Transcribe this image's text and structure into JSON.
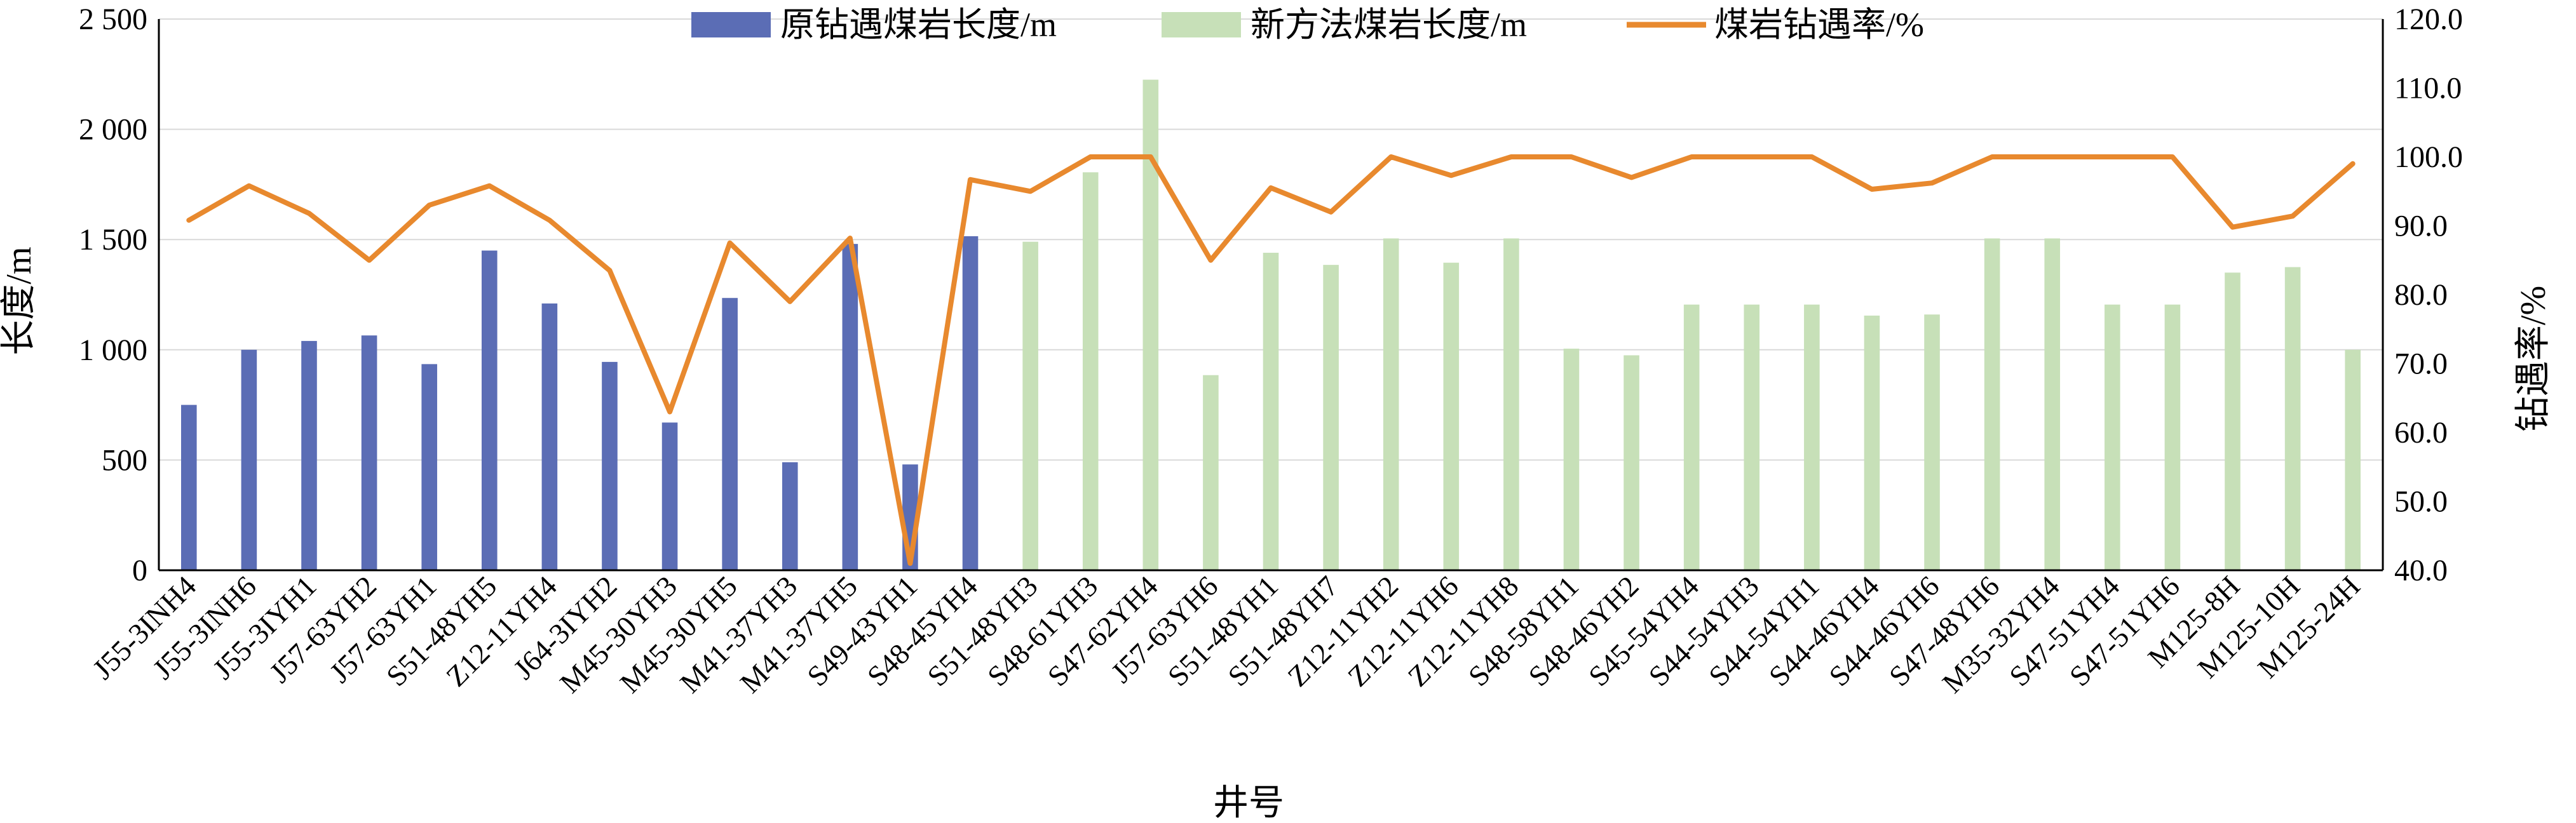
{
  "chart_data": {
    "type": "bar",
    "categories": [
      "J55-3INH4",
      "J55-3INH6",
      "J55-3IYH1",
      "J57-63YH2",
      "J57-63YH1",
      "S51-48YH5",
      "Z12-11YH4",
      "J64-3IYH2",
      "M45-30YH3",
      "M45-30YH5",
      "M41-37YH3",
      "M41-37YH5",
      "S49-43YH1",
      "S48-45YH4",
      "S51-48YH3",
      "S48-61YH3",
      "S47-62YH4",
      "J57-63YH6",
      "S51-48YH1",
      "S51-48YH7",
      "Z12-11YH2",
      "Z12-11YH6",
      "Z12-11YH8",
      "S48-58YH1",
      "S48-46YH2",
      "S45-54YH4",
      "S44-54YH3",
      "S44-54YH1",
      "S44-46YH4",
      "S44-46YH6",
      "S47-48YH6",
      "M35-32YH4",
      "S47-51YH4",
      "S47-51YH6",
      "M125-8H",
      "M125-10H",
      "M125-24H"
    ],
    "series": [
      {
        "name": "原钻遇煤岩长度/m",
        "type": "bar",
        "axis": "left",
        "color": "#5b6db5",
        "values": [
          750,
          1000,
          1040,
          1065,
          935,
          1450,
          1210,
          945,
          670,
          1235,
          490,
          1480,
          480,
          1515,
          null,
          null,
          null,
          null,
          null,
          null,
          null,
          null,
          null,
          null,
          null,
          null,
          null,
          null,
          null,
          null,
          null,
          null,
          null,
          null,
          null,
          null,
          null
        ]
      },
      {
        "name": "新方法煤岩长度/m",
        "type": "bar",
        "axis": "left",
        "color": "#c7e0b8",
        "values": [
          null,
          null,
          null,
          null,
          null,
          null,
          null,
          null,
          null,
          null,
          null,
          null,
          null,
          null,
          1490,
          1805,
          2225,
          885,
          1440,
          1385,
          1505,
          1395,
          1505,
          1005,
          975,
          1205,
          1205,
          1205,
          1155,
          1160,
          1505,
          1505,
          1205,
          1205,
          1350,
          1375,
          1000
        ]
      },
      {
        "name": "煤岩钻遇率/%",
        "type": "line",
        "axis": "right",
        "color": "#e8892e",
        "values": [
          90.8,
          95.8,
          91.8,
          85.0,
          93.0,
          95.8,
          90.8,
          83.5,
          63.0,
          87.5,
          79.0,
          88.2,
          41.0,
          96.7,
          95.0,
          100,
          100,
          85.0,
          95.5,
          92.0,
          100,
          97.3,
          100,
          100,
          97.0,
          100,
          100,
          100,
          95.3,
          96.2,
          100,
          100,
          100,
          100,
          89.8,
          91.4,
          99.0
        ]
      }
    ],
    "title": "",
    "xlabel": "井号",
    "ylabel": "长度/m",
    "y2label": "钻遇率/%",
    "ylim": [
      0,
      2500
    ],
    "y2lim": [
      40,
      120
    ],
    "yticks": [
      "0",
      "500",
      "1 000",
      "1 500",
      "2 000",
      "2 500"
    ],
    "y2ticks": [
      "40.0",
      "50.0",
      "60.0",
      "70.0",
      "80.0",
      "90.0",
      "100.0",
      "110.0",
      "120.0"
    ],
    "grid": true,
    "legend": "top"
  }
}
